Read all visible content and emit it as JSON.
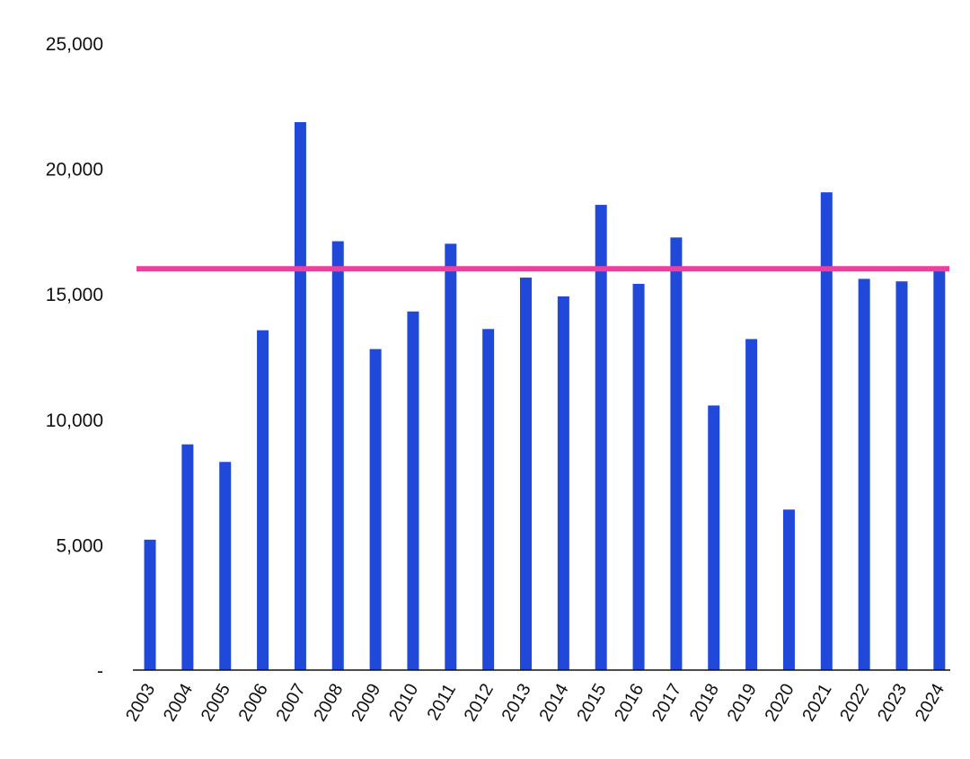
{
  "chart_data": {
    "type": "bar",
    "title": "",
    "xlabel": "",
    "ylabel": "",
    "categories": [
      "2003",
      "2004",
      "2005",
      "2006",
      "2007",
      "2008",
      "2009",
      "2010",
      "2011",
      "2012",
      "2013",
      "2014",
      "2015",
      "2016",
      "2017",
      "2018",
      "2019",
      "2020",
      "2021",
      "2022",
      "2023",
      "2024"
    ],
    "series": [
      {
        "values": [
          5200,
          9000,
          8300,
          13550,
          21850,
          17100,
          12800,
          14300,
          17000,
          13600,
          15650,
          14900,
          18550,
          15400,
          17250,
          10550,
          13200,
          6400,
          19050,
          15600,
          15500,
          15950
        ],
        "color": "#2149d9"
      }
    ],
    "reference_line": {
      "value": 16000,
      "color": "#ee3fa0"
    },
    "ylim": [
      0,
      25000
    ],
    "yticks": [
      {
        "value": 0,
        "label": "-"
      },
      {
        "value": 5000,
        "label": "5,000"
      },
      {
        "value": 10000,
        "label": "10,000"
      },
      {
        "value": 15000,
        "label": "15,000"
      },
      {
        "value": 20000,
        "label": "20,000"
      },
      {
        "value": 25000,
        "label": "25,000"
      }
    ],
    "grid": false,
    "legend": "none",
    "axis_color": "#111111"
  }
}
